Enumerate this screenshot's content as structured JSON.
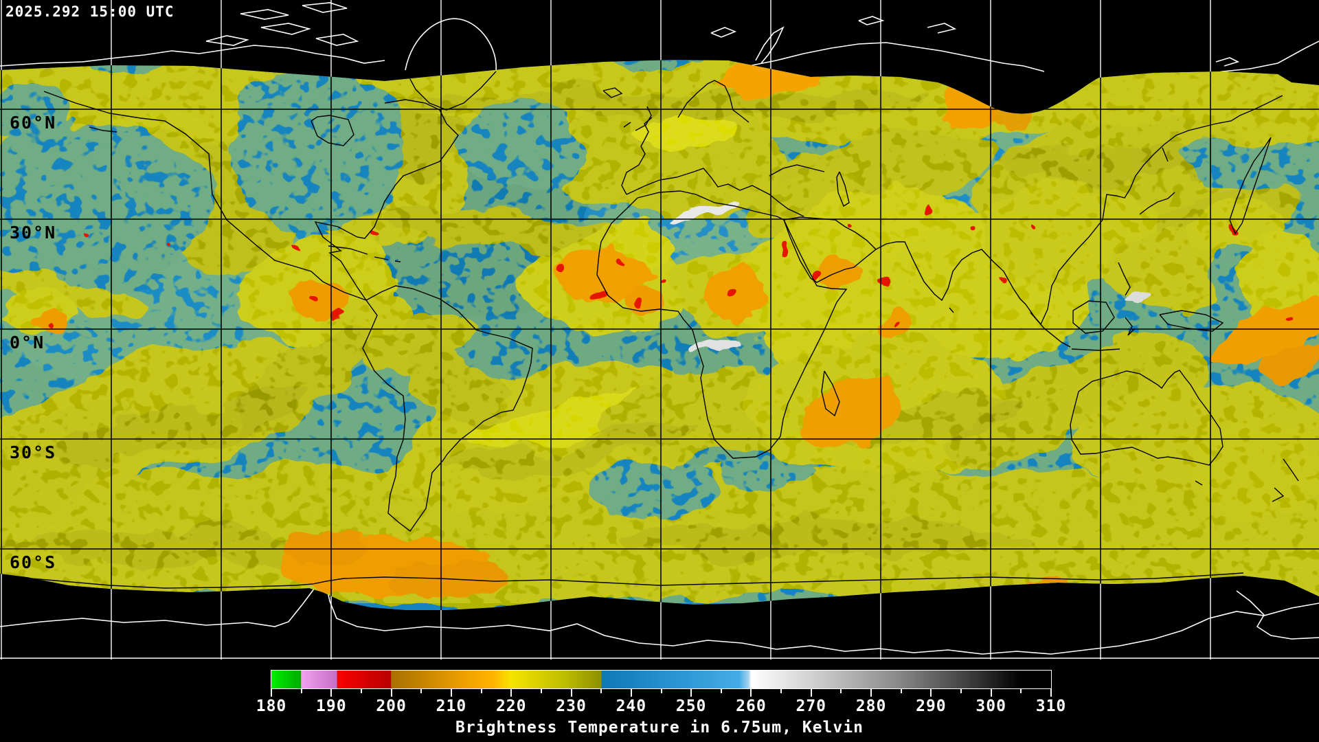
{
  "header": {
    "timestamp": "2025.292 15:00 UTC"
  },
  "map": {
    "latitude_labels": [
      {
        "label": "60°N"
      },
      {
        "label": "30°N"
      },
      {
        "label": "0°N"
      },
      {
        "label": "30°S"
      },
      {
        "label": "60°S"
      }
    ],
    "graticule": {
      "lon_spacing_deg": 30,
      "lat_spacing_deg": 30,
      "line_color_over_data": "#000000",
      "line_color_over_space": "#ffffff"
    },
    "palette": {
      "space_background": "#000000",
      "dry_blue": "#1584be",
      "moist_yellow": "#b6b600",
      "cold_cloud_orange": "#f0a000",
      "very_cold_red": "#e41400",
      "warm_surface_white": "#e8e8e8"
    }
  },
  "legend": {
    "caption": "Brightness Temperature in 6.75um, Kelvin"
  },
  "chart_data": {
    "type": "heatmap",
    "title": "Brightness Temperature in 6.75um, Kelvin",
    "timestamp": "2025.292 15:00 UTC",
    "projection": "equirectangular",
    "lat_gridlines_deg": [
      60,
      30,
      0,
      -30,
      -60
    ],
    "lat_labels": [
      "60°N",
      "30°N",
      "0°N",
      "30°S",
      "60°S"
    ],
    "lon_gridline_spacing_deg": 30,
    "colorbar": {
      "min": 180,
      "max": 310,
      "units": "Kelvin",
      "major_tick_step": 10,
      "minor_tick_step": 5,
      "tick_labels": [
        180,
        190,
        200,
        210,
        220,
        230,
        240,
        250,
        260,
        270,
        280,
        290,
        300,
        310
      ],
      "stops": [
        {
          "value": 180,
          "color": "#00f000"
        },
        {
          "value": 184.9,
          "color": "#00aa00"
        },
        {
          "value": 185,
          "color": "#f2a0f2"
        },
        {
          "value": 190.9,
          "color": "#c470c4"
        },
        {
          "value": 191,
          "color": "#fa0000"
        },
        {
          "value": 199.9,
          "color": "#b80000"
        },
        {
          "value": 200,
          "color": "#a87000"
        },
        {
          "value": 212,
          "color": "#eda000"
        },
        {
          "value": 217,
          "color": "#ffb400"
        },
        {
          "value": 220,
          "color": "#f5e400"
        },
        {
          "value": 229,
          "color": "#bdbd00"
        },
        {
          "value": 235,
          "color": "#8e8e00"
        },
        {
          "value": 235.1,
          "color": "#0e78b4"
        },
        {
          "value": 248,
          "color": "#2a96d2"
        },
        {
          "value": 258,
          "color": "#46ace6"
        },
        {
          "value": 259.6,
          "color": "#a6d4ec"
        },
        {
          "value": 260,
          "color": "#ffffff"
        },
        {
          "value": 272,
          "color": "#c8c8c8"
        },
        {
          "value": 284,
          "color": "#8c8c8c"
        },
        {
          "value": 296,
          "color": "#404040"
        },
        {
          "value": 305,
          "color": "#000000"
        },
        {
          "value": 310,
          "color": "#000000"
        }
      ]
    }
  }
}
